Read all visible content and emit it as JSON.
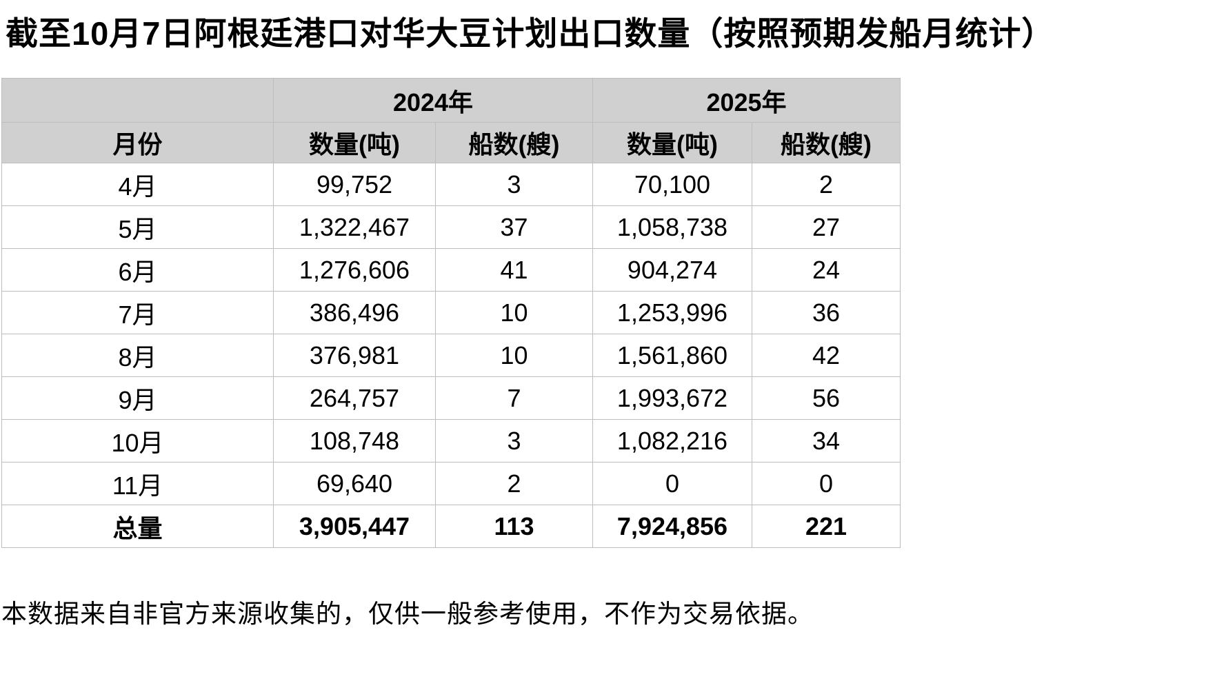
{
  "title": "截至10月7日阿根廷港口对华大豆计划出口数量（按照预期发船月统计）",
  "footnote": "本数据来自非官方来源收集的，仅供一般参考使用，不作为交易依据。",
  "colors": {
    "background": "#FFFFFF",
    "header_bg": "#D0D0D0",
    "grid_line": "#BDBDBD",
    "text": "#000000"
  },
  "table": {
    "year_headers": {
      "blank": "",
      "y2024": "2024年",
      "y2025": "2025年"
    },
    "col_headers": [
      "月份",
      "数量(吨)",
      "船数(艘)",
      "数量(吨)",
      "船数(艘)"
    ],
    "rows": [
      {
        "month": "4月",
        "values": [
          "99,752",
          "3",
          "70,100",
          "2"
        ]
      },
      {
        "month": "5月",
        "values": [
          "1,322,467",
          "37",
          "1,058,738",
          "27"
        ]
      },
      {
        "month": "6月",
        "values": [
          "1,276,606",
          "41",
          "904,274",
          "24"
        ]
      },
      {
        "month": "7月",
        "values": [
          "386,496",
          "10",
          "1,253,996",
          "36"
        ]
      },
      {
        "month": "8月",
        "values": [
          "376,981",
          "10",
          "1,561,860",
          "42"
        ]
      },
      {
        "month": "9月",
        "values": [
          "264,757",
          "7",
          "1,993,672",
          "56"
        ]
      },
      {
        "month": "10月",
        "values": [
          "108,748",
          "3",
          "1,082,216",
          "34"
        ]
      },
      {
        "month": "11月",
        "values": [
          "69,640",
          "2",
          "0",
          "0"
        ]
      }
    ],
    "total": {
      "month": "总量",
      "values": [
        "3,905,447",
        "113",
        "7,924,856",
        "221"
      ]
    }
  },
  "chart_data": {
    "type": "table",
    "title": "截至10月7日阿根廷港口对华大豆计划出口数量（按照预期发船月统计）",
    "columns": [
      "月份",
      "2024年 数量(吨)",
      "2024年 船数(艘)",
      "2025年 数量(吨)",
      "2025年 船数(艘)"
    ],
    "rows": [
      [
        "4月",
        99752,
        3,
        70100,
        2
      ],
      [
        "5月",
        1322467,
        37,
        1058738,
        27
      ],
      [
        "6月",
        1276606,
        41,
        904274,
        24
      ],
      [
        "7月",
        386496,
        10,
        1253996,
        36
      ],
      [
        "8月",
        376981,
        10,
        1561860,
        42
      ],
      [
        "9月",
        264757,
        7,
        1993672,
        56
      ],
      [
        "10月",
        108748,
        3,
        1082216,
        34
      ],
      [
        "11月",
        69640,
        2,
        0,
        0
      ],
      [
        "总量",
        3905447,
        113,
        7924856,
        221
      ]
    ],
    "notes": "本数据来自非官方来源收集的，仅供一般参考使用，不作为交易依据。"
  }
}
